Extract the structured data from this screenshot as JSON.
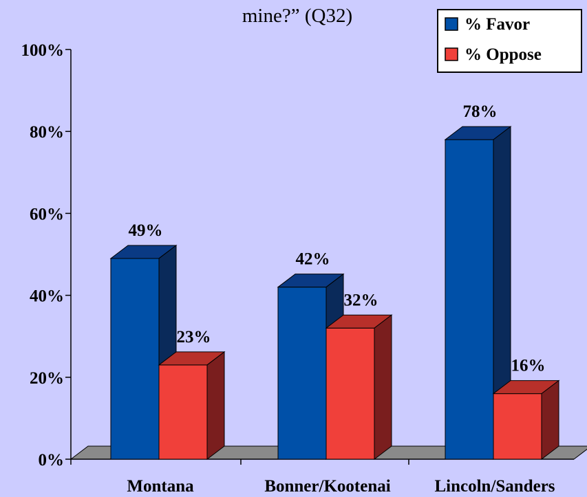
{
  "chart_data": {
    "type": "bar",
    "title": "mine?” (Q32)",
    "categories": [
      "Montana",
      "Bonner/Kootenai",
      "Lincoln/Sanders"
    ],
    "series": [
      {
        "name": "% Favor",
        "values": [
          49,
          42,
          78
        ],
        "labels": [
          "49%",
          "42%",
          "78%"
        ],
        "color": "#0050a8"
      },
      {
        "name": "% Oppose",
        "values": [
          23,
          32,
          16
        ],
        "labels": [
          "23%",
          "32%",
          "16%"
        ],
        "color": "#f0403a"
      }
    ],
    "yticks": [
      "0%",
      "20%",
      "40%",
      "60%",
      "80%",
      "100%"
    ],
    "ylim": [
      0,
      100
    ],
    "legend_position": "top-right",
    "three_d": true,
    "background_color": "#ccccff"
  }
}
